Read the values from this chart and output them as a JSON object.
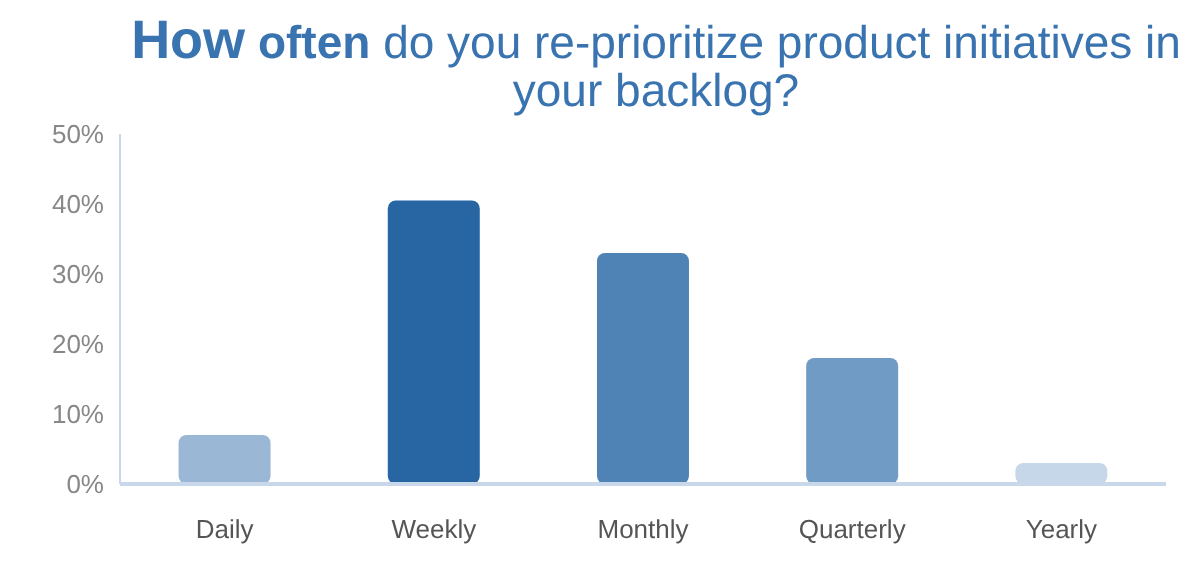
{
  "chart_data": {
    "type": "bar",
    "title": "How often do you re-prioritize product initiatives in your backlog?",
    "categories": [
      "Daily",
      "Weekly",
      "Monthly",
      "Quarterly",
      "Yearly"
    ],
    "values": [
      7,
      40.5,
      33,
      18,
      3
    ],
    "colors": [
      "#9bb7d6",
      "#2766a3",
      "#4f83b5",
      "#6f9bc4",
      "#c5d7e8"
    ],
    "ylim": [
      0,
      50
    ],
    "yticks": [
      {
        "value": 0,
        "label": "0%"
      },
      {
        "value": 10,
        "label": "10%"
      },
      {
        "value": 20,
        "label": "20%"
      },
      {
        "value": 30,
        "label": "30%"
      },
      {
        "value": 40,
        "label": "40%"
      },
      {
        "value": 50,
        "label": "50%"
      }
    ],
    "grid": false,
    "legend": false
  }
}
